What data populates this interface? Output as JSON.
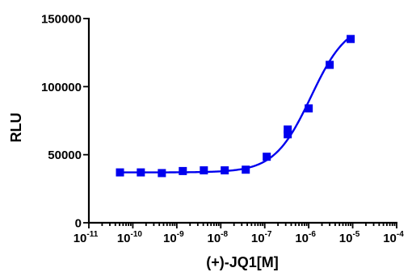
{
  "chart_data": {
    "type": "scatter",
    "xlabel": "(+)-JQ1[M]",
    "ylabel": "RLU",
    "x_scale": "log",
    "xlim": [
      1e-11,
      0.0001
    ],
    "ylim": [
      0,
      150000
    ],
    "x_ticks": [
      {
        "base": "10",
        "exp": "-11",
        "value": 1e-11
      },
      {
        "base": "10",
        "exp": "-10",
        "value": 1e-10
      },
      {
        "base": "10",
        "exp": "-9",
        "value": 1e-09
      },
      {
        "base": "10",
        "exp": "-8",
        "value": 1e-08
      },
      {
        "base": "10",
        "exp": "-7",
        "value": 1e-07
      },
      {
        "base": "10",
        "exp": "-6",
        "value": 1e-06
      },
      {
        "base": "10",
        "exp": "-5",
        "value": 1e-05
      },
      {
        "base": "10",
        "exp": "-4",
        "value": 0.0001
      }
    ],
    "y_ticks": [
      "0",
      "50000",
      "100000",
      "150000"
    ],
    "grid": false,
    "color": "#0000ee",
    "marker": "square",
    "series": [
      {
        "x": [
          5.1e-11,
          1.52e-10,
          4.57e-10,
          1.37e-09,
          4.12e-09,
          1.23e-08,
          3.7e-08,
          1.11e-07,
          3.33e-07,
          3.33e-07,
          1e-06,
          3e-06,
          9e-06
        ],
        "y": [
          37000,
          37000,
          36500,
          38000,
          38500,
          38500,
          39000,
          48500,
          65000,
          68500,
          84000,
          116000,
          135000
        ]
      }
    ],
    "fit": {
      "type": "sigmoidal dose-response",
      "bottom": 37000,
      "top": 148000,
      "log_ec50": -5.95,
      "hill": 1.05
    }
  }
}
